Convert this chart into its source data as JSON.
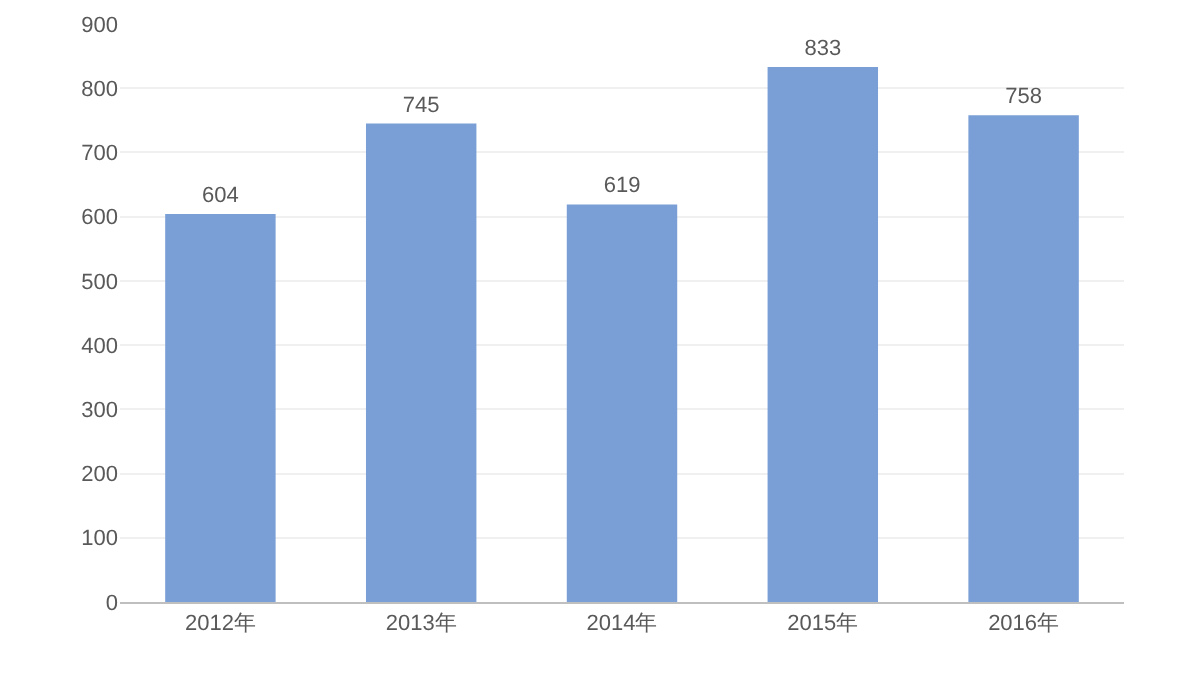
{
  "chart_data": {
    "type": "bar",
    "categories": [
      "2012年",
      "2013年",
      "2014年",
      "2015年",
      "2016年"
    ],
    "values": [
      604,
      745,
      619,
      833,
      758
    ],
    "color": "#7a9fd6",
    "ylim": [
      0,
      900
    ],
    "yticks": [
      0,
      100,
      200,
      300,
      400,
      500,
      600,
      700,
      800,
      900
    ],
    "grid": "y",
    "data_labels": true
  }
}
